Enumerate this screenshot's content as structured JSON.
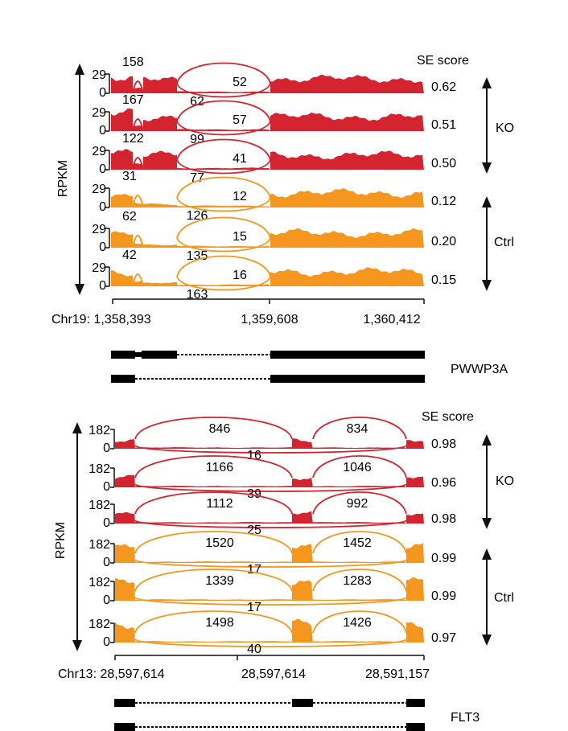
{
  "colors": {
    "ko": "#d42430",
    "ctrl": "#f5961f",
    "gene": "#000000"
  },
  "panels": [
    {
      "id": "pwwp3a",
      "se_header": "SE score",
      "y_label": "RPKM",
      "chromosome_label": "Chr19: 1,358,393",
      "coordinates": [
        "1,359,608",
        "1,360,412"
      ],
      "gene_name": "PWWP3A",
      "group_labels": {
        "ko": "KO",
        "ctrl": "Ctrl"
      },
      "tracks": [
        {
          "group": "ko",
          "ymax": "29",
          "ymin": "0",
          "se": "0.62",
          "j1": "158",
          "j2": "52",
          "skip": "62"
        },
        {
          "group": "ko",
          "ymax": "29",
          "ymin": "0",
          "se": "0.51",
          "j1": "167",
          "j2": "57",
          "skip": "99"
        },
        {
          "group": "ko",
          "ymax": "29",
          "ymin": "0",
          "se": "0.50",
          "j1": "122",
          "j2": "41",
          "skip": "77"
        },
        {
          "group": "ctrl",
          "ymax": "29",
          "ymin": "0",
          "se": "0.12",
          "j1": "31",
          "j2": "12",
          "skip": "126"
        },
        {
          "group": "ctrl",
          "ymax": "29",
          "ymin": "0",
          "se": "0.20",
          "j1": "62",
          "j2": "15",
          "skip": "135"
        },
        {
          "group": "ctrl",
          "ymax": "29",
          "ymin": "0",
          "se": "0.15",
          "j1": "42",
          "j2": "16",
          "skip": "163"
        }
      ]
    },
    {
      "id": "flt3",
      "se_header": "SE score",
      "y_label": "RPKM",
      "chromosome_label": "Chr13: 28,597,614",
      "coordinates": [
        "28,597,614",
        "28,591,157"
      ],
      "gene_name": "FLT3",
      "group_labels": {
        "ko": "KO",
        "ctrl": "Ctrl"
      },
      "tracks": [
        {
          "group": "ko",
          "ymax": "182",
          "ymin": "0",
          "se": "0.98",
          "j1": "846",
          "j2": "834",
          "skip": "16"
        },
        {
          "group": "ko",
          "ymax": "182",
          "ymin": "0",
          "se": "0.96",
          "j1": "1166",
          "j2": "1046",
          "skip": "39"
        },
        {
          "group": "ko",
          "ymax": "182",
          "ymin": "0",
          "se": "0.98",
          "j1": "1112",
          "j2": "992",
          "skip": "25"
        },
        {
          "group": "ctrl",
          "ymax": "182",
          "ymin": "0",
          "se": "0.99",
          "j1": "1520",
          "j2": "1452",
          "skip": "17"
        },
        {
          "group": "ctrl",
          "ymax": "182",
          "ymin": "0",
          "se": "0.99",
          "j1": "1339",
          "j2": "1283",
          "skip": "17"
        },
        {
          "group": "ctrl",
          "ymax": "182",
          "ymin": "0",
          "se": "0.97",
          "j1": "1498",
          "j2": "1426",
          "skip": "40"
        }
      ]
    }
  ]
}
